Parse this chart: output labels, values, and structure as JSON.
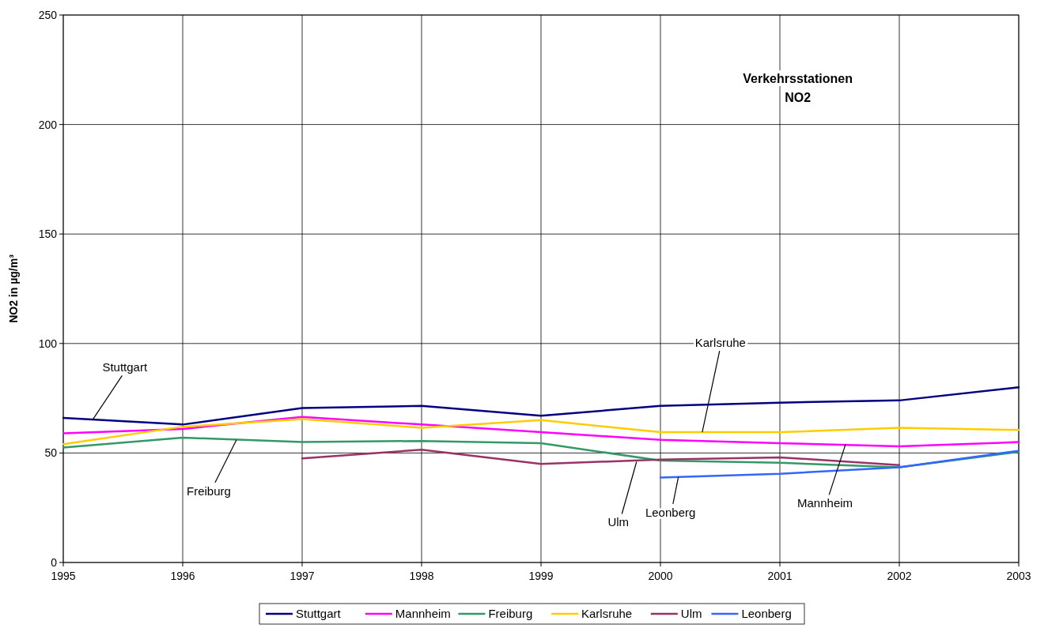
{
  "chart_data": {
    "type": "line",
    "title": "Verkehrsstationen\nNO2",
    "ylabel": "NO2 in µg/m³",
    "x": [
      1995,
      1996,
      1997,
      1998,
      1999,
      2000,
      2001,
      2002,
      2003
    ],
    "xlim": [
      1995,
      2003
    ],
    "xticks": [
      1995,
      1996,
      1997,
      1998,
      1999,
      2000,
      2001,
      2002,
      2003
    ],
    "ylim": [
      0,
      250
    ],
    "yticks": [
      0,
      50,
      100,
      150,
      200,
      250
    ],
    "grid": true,
    "legend": "bottom",
    "marker": "none",
    "line_style": "solid",
    "series": [
      {
        "name": "Stuttgart",
        "color": "#000080",
        "values": [
          66,
          63,
          70.5,
          71.5,
          67,
          71.5,
          73,
          74,
          80
        ]
      },
      {
        "name": "Mannheim",
        "color": "#ff00ff",
        "values": [
          59,
          61,
          66.5,
          63,
          59.5,
          56,
          54.5,
          53,
          55
        ]
      },
      {
        "name": "Freiburg",
        "color": "#339966",
        "values": [
          52.5,
          57,
          55,
          55.5,
          54.5,
          46.5,
          45.5,
          43.5,
          50.5
        ]
      },
      {
        "name": "Karlsruhe",
        "color": "#ffcc00",
        "values": [
          54,
          62,
          65.5,
          61.5,
          65,
          59.5,
          59.5,
          61.5,
          60.5
        ]
      },
      {
        "name": "Ulm",
        "color": "#993366",
        "values": [
          null,
          null,
          47.5,
          51.5,
          45,
          47,
          48,
          44.5,
          null
        ]
      },
      {
        "name": "Leonberg",
        "color": "#3366ff",
        "values": [
          null,
          null,
          null,
          null,
          null,
          38.8,
          40.5,
          43.5,
          51
        ]
      }
    ],
    "annotations": [
      {
        "text": "Stuttgart",
        "x": 1995.25,
        "y": 65.5
      },
      {
        "text": "Freiburg",
        "x": 1996.45,
        "y": 56
      },
      {
        "text": "Ulm",
        "x": 1999.8,
        "y": 46
      },
      {
        "text": "Leonberg",
        "x": 2000.15,
        "y": 39
      },
      {
        "text": "Mannheim",
        "x": 2001.55,
        "y": 54
      },
      {
        "text": "Karlsruhe",
        "x": 2000.35,
        "y": 59.5
      }
    ]
  }
}
